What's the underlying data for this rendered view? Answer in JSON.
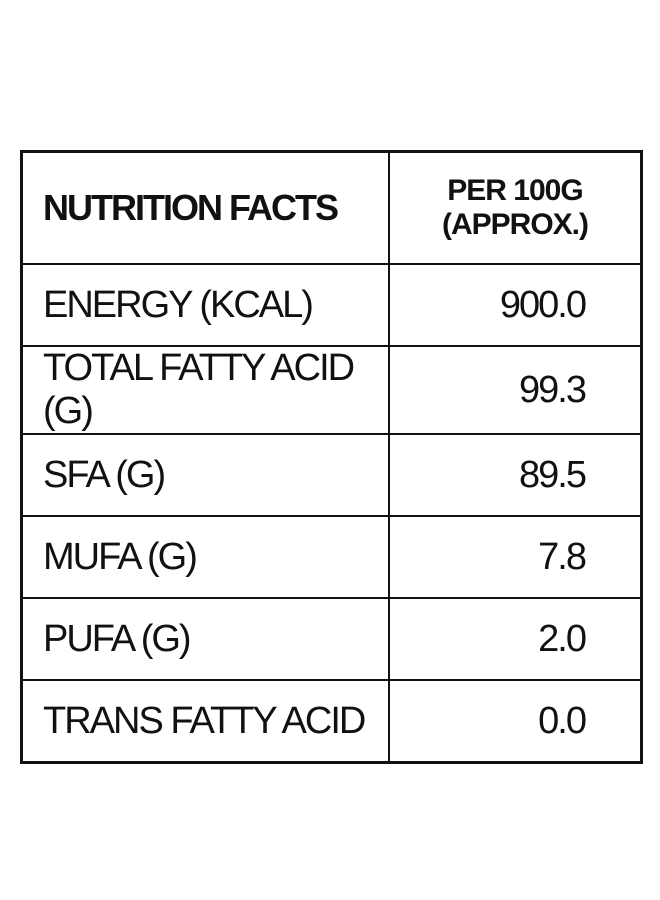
{
  "table": {
    "header": [
      "NUTRITION FACTS",
      "PER 100G\n(APPROX.)"
    ],
    "rows": [
      [
        "ENERGY (KCAL)",
        "900.0"
      ],
      [
        "TOTAL FATTY ACID (G)",
        "99.3"
      ],
      [
        "SFA (G)",
        "89.5"
      ],
      [
        "MUFA (G)",
        "7.8"
      ],
      [
        "PUFA (G)",
        "2.0"
      ],
      [
        "TRANS FATTY ACID",
        "0.0"
      ]
    ]
  }
}
